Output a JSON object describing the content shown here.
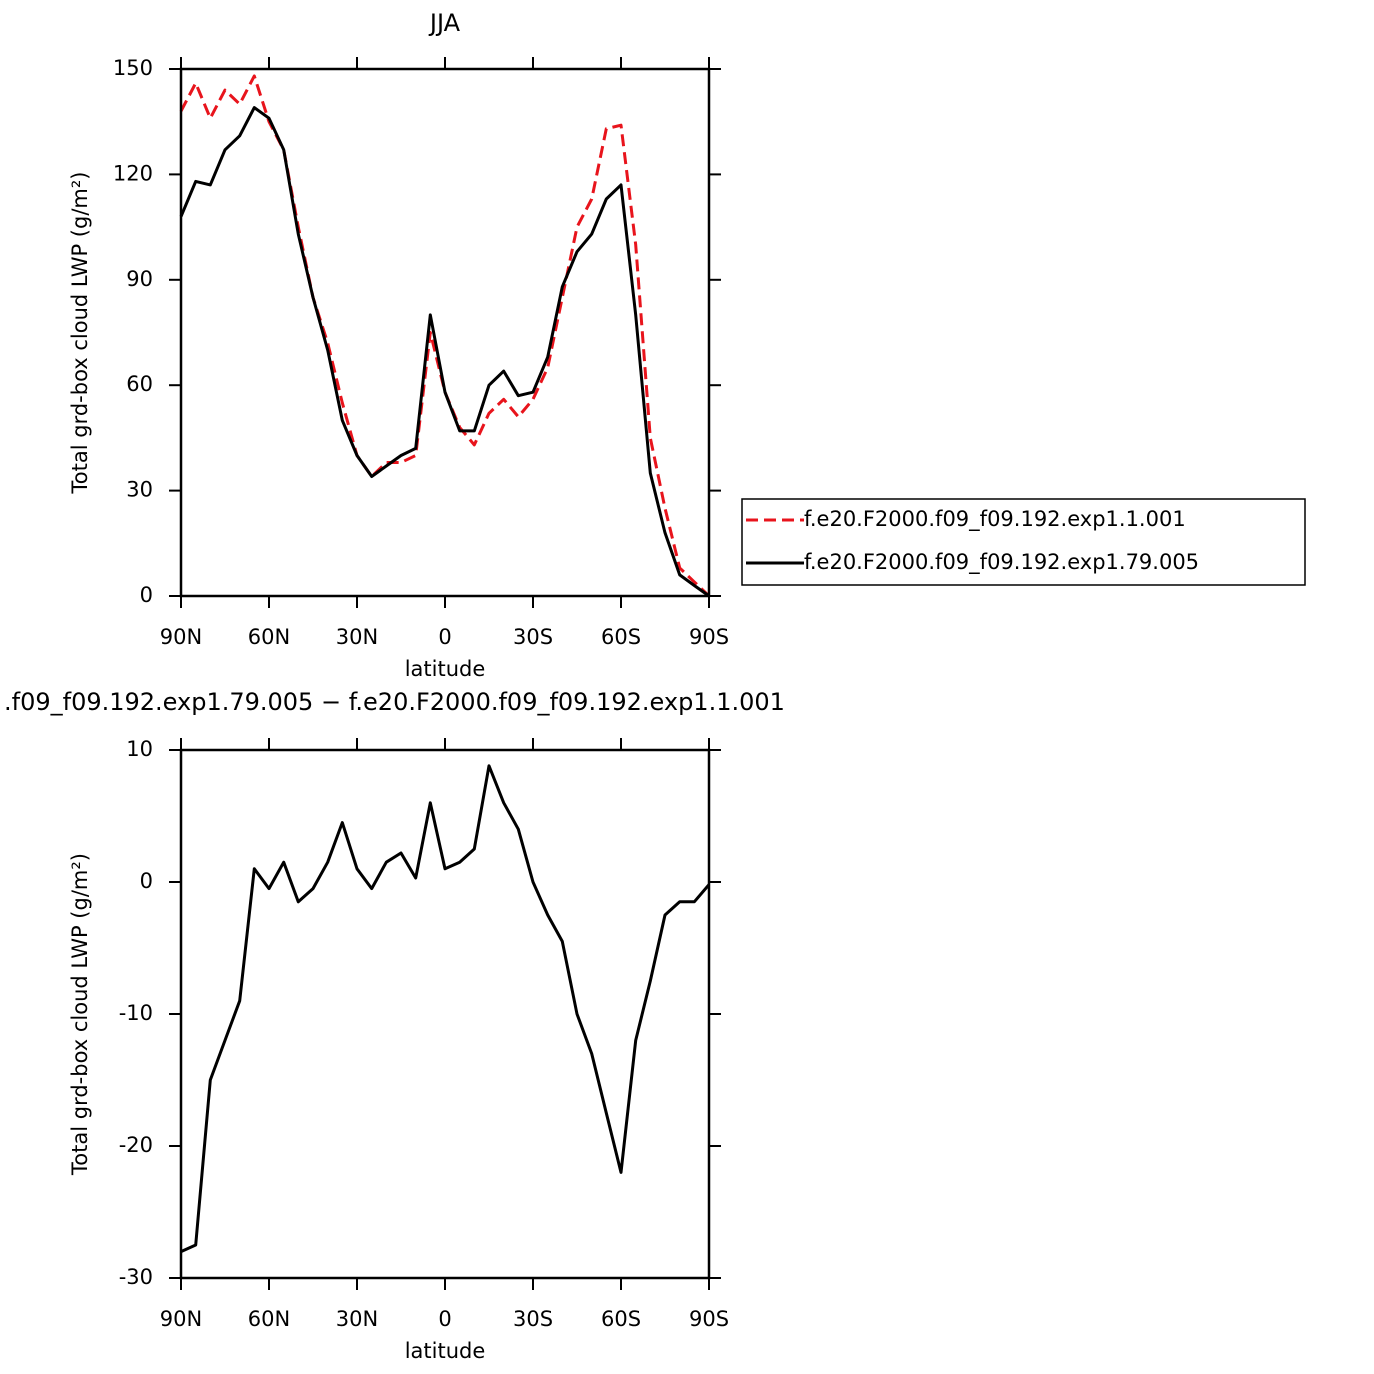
{
  "chart_data": [
    {
      "type": "line",
      "title": "JJA",
      "xlabel": "latitude",
      "ylabel": "Total grd-box cloud LWP (g/m²)",
      "x": [
        90,
        85,
        80,
        75,
        70,
        65,
        60,
        55,
        50,
        45,
        40,
        35,
        30,
        25,
        20,
        15,
        10,
        5,
        0,
        -5,
        -10,
        -15,
        -20,
        -25,
        -30,
        -35,
        -40,
        -45,
        -50,
        -55,
        -60,
        -65,
        -70,
        -75,
        -80,
        -85,
        -90
      ],
      "series": [
        {
          "name": "f.e20.F2000.f09_f09.192.exp1.1.001",
          "color": "#e8141c",
          "line_style": "dashed",
          "values": [
            138,
            146,
            136,
            144,
            140,
            148,
            135,
            127,
            105,
            85,
            72,
            55,
            40,
            34,
            38,
            38,
            40,
            75,
            58,
            48,
            43,
            52,
            56,
            51,
            56,
            65,
            85,
            105,
            113,
            133,
            134,
            100,
            45,
            25,
            8,
            4,
            0
          ]
        },
        {
          "name": "f.e20.F2000.f09_f09.192.exp1.79.005",
          "color": "#000000",
          "line_style": "solid",
          "values": [
            108,
            118,
            117,
            127,
            131,
            139,
            136,
            127,
            103,
            85,
            70,
            50,
            40,
            34,
            37,
            40,
            42,
            80,
            58,
            47,
            47,
            60,
            64,
            57,
            58,
            68,
            88,
            98,
            103,
            113,
            117,
            80,
            35,
            18,
            6,
            3,
            0
          ]
        }
      ],
      "xlim": [
        90,
        -90
      ],
      "xticks": [
        {
          "value": 90,
          "label": "90N"
        },
        {
          "value": 60,
          "label": "60N"
        },
        {
          "value": 30,
          "label": "30N"
        },
        0,
        {
          "value": -30,
          "label": "30S"
        },
        {
          "value": -60,
          "label": "60S"
        },
        {
          "value": -90,
          "label": "90S"
        }
      ],
      "ylim": [
        0,
        150
      ],
      "yticks": [
        0,
        30,
        60,
        90,
        120,
        150
      ],
      "legend": "outside-right"
    },
    {
      "type": "line",
      "title": ".f09_f09.192.exp1.79.005 − f.e20.F2000.f09_f09.192.exp1.1.001",
      "xlabel": "latitude",
      "ylabel": "Total grd-box cloud LWP (g/m²)",
      "x": [
        90,
        85,
        80,
        75,
        70,
        65,
        60,
        55,
        50,
        45,
        40,
        35,
        30,
        25,
        20,
        15,
        10,
        5,
        0,
        -5,
        -10,
        -15,
        -20,
        -25,
        -30,
        -35,
        -40,
        -45,
        -50,
        -55,
        -60,
        -65,
        -70,
        -75,
        -80,
        -85,
        -90
      ],
      "color": "#000000",
      "values": [
        -28,
        -27.5,
        -15,
        -12,
        -9,
        1,
        -0.5,
        1.5,
        -1.5,
        -0.5,
        1.5,
        4.5,
        1,
        -0.5,
        1.5,
        2.2,
        0.3,
        6,
        1,
        1.5,
        2.5,
        8.8,
        6,
        4,
        0,
        -2.5,
        -4.5,
        -10,
        -13,
        -17.5,
        -22,
        -12,
        -7.5,
        -2.5,
        -1.5,
        -1.5,
        -0.2
      ],
      "xlim": [
        90,
        -90
      ],
      "xticks": [
        {
          "value": 90,
          "label": "90N"
        },
        {
          "value": 60,
          "label": "60N"
        },
        {
          "value": 30,
          "label": "30N"
        },
        0,
        {
          "value": -30,
          "label": "30S"
        },
        {
          "value": -60,
          "label": "60S"
        },
        {
          "value": -90,
          "label": "90S"
        }
      ],
      "ylim": [
        -30,
        10
      ],
      "yticks": [
        -30,
        -20,
        -10,
        0,
        10
      ]
    }
  ]
}
